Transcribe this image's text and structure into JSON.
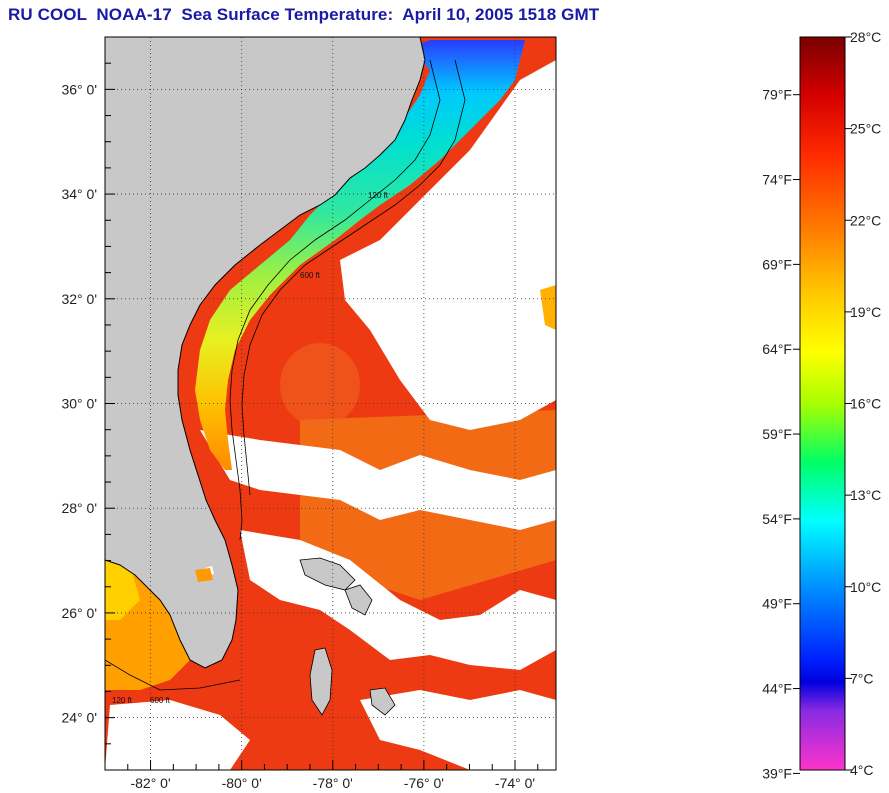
{
  "title": "RU COOL  NOAA-17  Sea Surface Temperature:  April 10, 2005 1518 GMT",
  "map": {
    "latitude_labels": [
      {
        "lat": 36,
        "label": "36° 0'"
      },
      {
        "lat": 34,
        "label": "34° 0'"
      },
      {
        "lat": 32,
        "label": "32° 0'"
      },
      {
        "lat": 30,
        "label": "30° 0'"
      },
      {
        "lat": 28,
        "label": "28° 0'"
      },
      {
        "lat": 26,
        "label": "26° 0'"
      },
      {
        "lat": 24,
        "label": "24° 0'"
      }
    ],
    "longitude_labels": [
      {
        "lon": -82,
        "label": "-82° 0'"
      },
      {
        "lon": -80,
        "label": "-80° 0'"
      },
      {
        "lon": -78,
        "label": "-78° 0'"
      },
      {
        "lon": -76,
        "label": "-76° 0'"
      },
      {
        "lon": -74,
        "label": "-74° 0'"
      }
    ],
    "lon_range": [
      -83.0,
      -73.1
    ],
    "lat_range": [
      23.0,
      37.0
    ],
    "contour_labels": [
      "120 ft",
      "600 ft"
    ],
    "colors": {
      "land": "#c8c8c8",
      "cloud": "#ffffff",
      "gulf_stream": "#ee3a12",
      "coastline": "#000000",
      "gridline": "#333333"
    }
  },
  "colorbar": {
    "fahrenheit_labels": [
      "79°F",
      "74°F",
      "69°F",
      "64°F",
      "59°F",
      "54°F",
      "49°F",
      "44°F",
      "39°F"
    ],
    "celsius_labels": [
      "28°C",
      "25°C",
      "22°C",
      "19°C",
      "16°C",
      "13°C",
      "10°C",
      "7°C",
      "4°C"
    ],
    "range_celsius": [
      4,
      28
    ],
    "colors_top_to_bottom": [
      "#7a0000",
      "#d40000",
      "#ff2a00",
      "#ff7a00",
      "#ffd000",
      "#ffff00",
      "#a8ff00",
      "#00ff66",
      "#00ffff",
      "#0090ff",
      "#0020ff",
      "#0000dd",
      "#8a2be2",
      "#ff33cc"
    ]
  }
}
